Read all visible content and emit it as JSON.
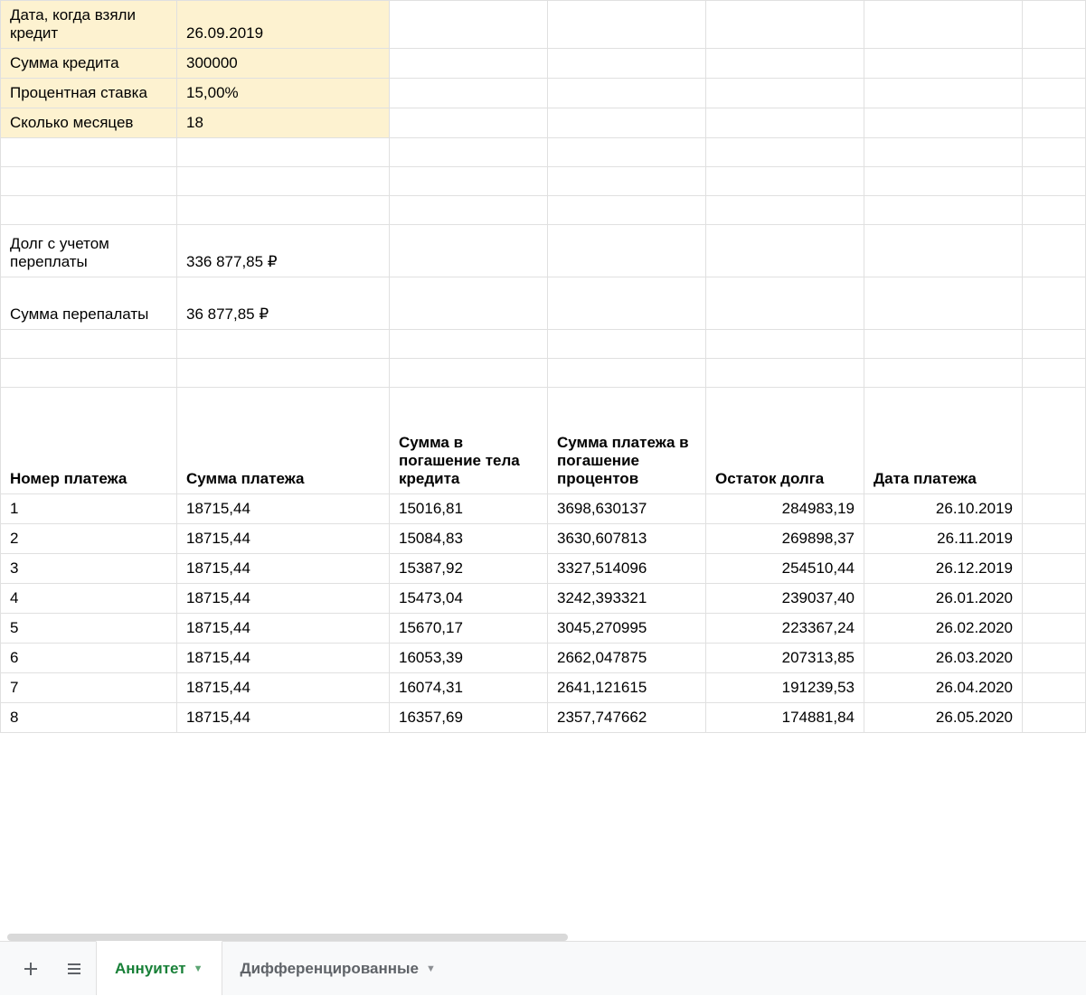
{
  "inputs": {
    "date_label": "Дата, когда взяли кредит",
    "date_value": "26.09.2019",
    "sum_label": "Сумма кредита",
    "sum_value": "300000",
    "rate_label": "Процентная ставка",
    "rate_value": "15,00%",
    "months_label": "Сколько месяцев",
    "months_value": "18"
  },
  "summary": {
    "total_label": "Долг с учетом переплаты",
    "total_value": "336 877,85 ₽",
    "over_label": "Сумма перепалаты",
    "over_value": "36 877,85 ₽"
  },
  "schedule": {
    "columns": {
      "num": "Номер платежа",
      "payment": "Сумма платежа",
      "principal": "Сумма в погашение тела кредита",
      "interest": "Сумма платежа в погашение процентов",
      "balance": "Остаток долга",
      "date": "Дата платежа"
    },
    "rows": [
      {
        "n": "1",
        "p": "18715,44",
        "pr": "15016,81",
        "in": "3698,630137",
        "b": "284983,19",
        "d": "26.10.2019"
      },
      {
        "n": "2",
        "p": "18715,44",
        "pr": "15084,83",
        "in": "3630,607813",
        "b": "269898,37",
        "d": "26.11.2019"
      },
      {
        "n": "3",
        "p": "18715,44",
        "pr": "15387,92",
        "in": "3327,514096",
        "b": "254510,44",
        "d": "26.12.2019"
      },
      {
        "n": "4",
        "p": "18715,44",
        "pr": "15473,04",
        "in": "3242,393321",
        "b": "239037,40",
        "d": "26.01.2020"
      },
      {
        "n": "5",
        "p": "18715,44",
        "pr": "15670,17",
        "in": "3045,270995",
        "b": "223367,24",
        "d": "26.02.2020"
      },
      {
        "n": "6",
        "p": "18715,44",
        "pr": "16053,39",
        "in": "2662,047875",
        "b": "207313,85",
        "d": "26.03.2020"
      },
      {
        "n": "7",
        "p": "18715,44",
        "pr": "16074,31",
        "in": "2641,121615",
        "b": "191239,53",
        "d": "26.04.2020"
      },
      {
        "n": "8",
        "p": "18715,44",
        "pr": "16357,69",
        "in": "2357,747662",
        "b": "174881,84",
        "d": "26.05.2020"
      }
    ]
  },
  "tabs": {
    "active": "Аннуитет",
    "other": "Дифференцированные"
  },
  "colors": {
    "highlight": "#fdf2d0",
    "border": "#e0e0e0",
    "tab_active": "#188038",
    "tab_bg": "#f8f9fa",
    "tab_inactive": "#5f6368"
  }
}
